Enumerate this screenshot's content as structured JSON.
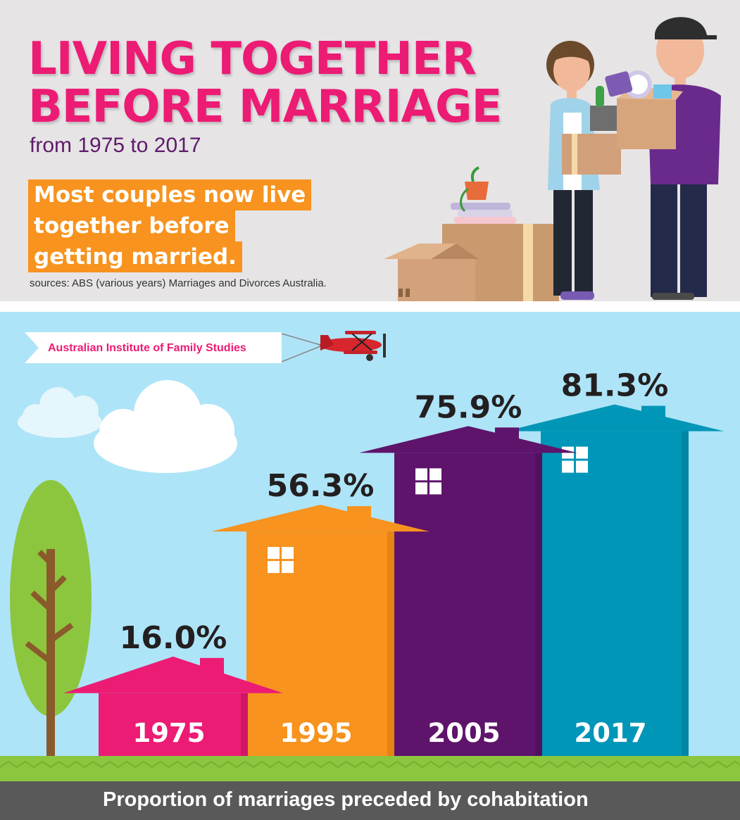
{
  "header": {
    "title_line1": "LIVING TOGETHER",
    "title_line2": "BEFORE MARRIAGE",
    "subtitle": "from 1975 to 2017",
    "highlight_lines": [
      "Most couples now live",
      "together before",
      "getting married."
    ],
    "sources": "sources: ABS (various years) Marriages and Divorces Australia."
  },
  "banner": {
    "text": "Australian Institute of Family Studies"
  },
  "caption": "Proportion of marriages preceded by cohabitation",
  "colors": {
    "pink": "#ec1b74",
    "orange": "#f7931e",
    "purple": "#5e146b",
    "teal": "#0096b7",
    "sky": "#aee4f7",
    "grass": "#8cc63f",
    "caption_bar": "#595959"
  },
  "chart_data": {
    "type": "bar",
    "categories": [
      "1975",
      "1995",
      "2005",
      "2017"
    ],
    "values": [
      16.0,
      56.3,
      75.9,
      81.3
    ],
    "value_labels": [
      "16.0%",
      "56.3%",
      "75.9%",
      "81.3%"
    ],
    "title": "LIVING TOGETHER BEFORE MARRIAGE",
    "xlabel": "",
    "ylabel": "",
    "ylim": [
      0,
      100
    ],
    "unit": "%",
    "grid": false,
    "legend": "none"
  },
  "icons": [
    "tree-icon",
    "cloud-icon",
    "biplane-icon",
    "house-window-icon",
    "couple-illustration",
    "moving-boxes-icon"
  ]
}
